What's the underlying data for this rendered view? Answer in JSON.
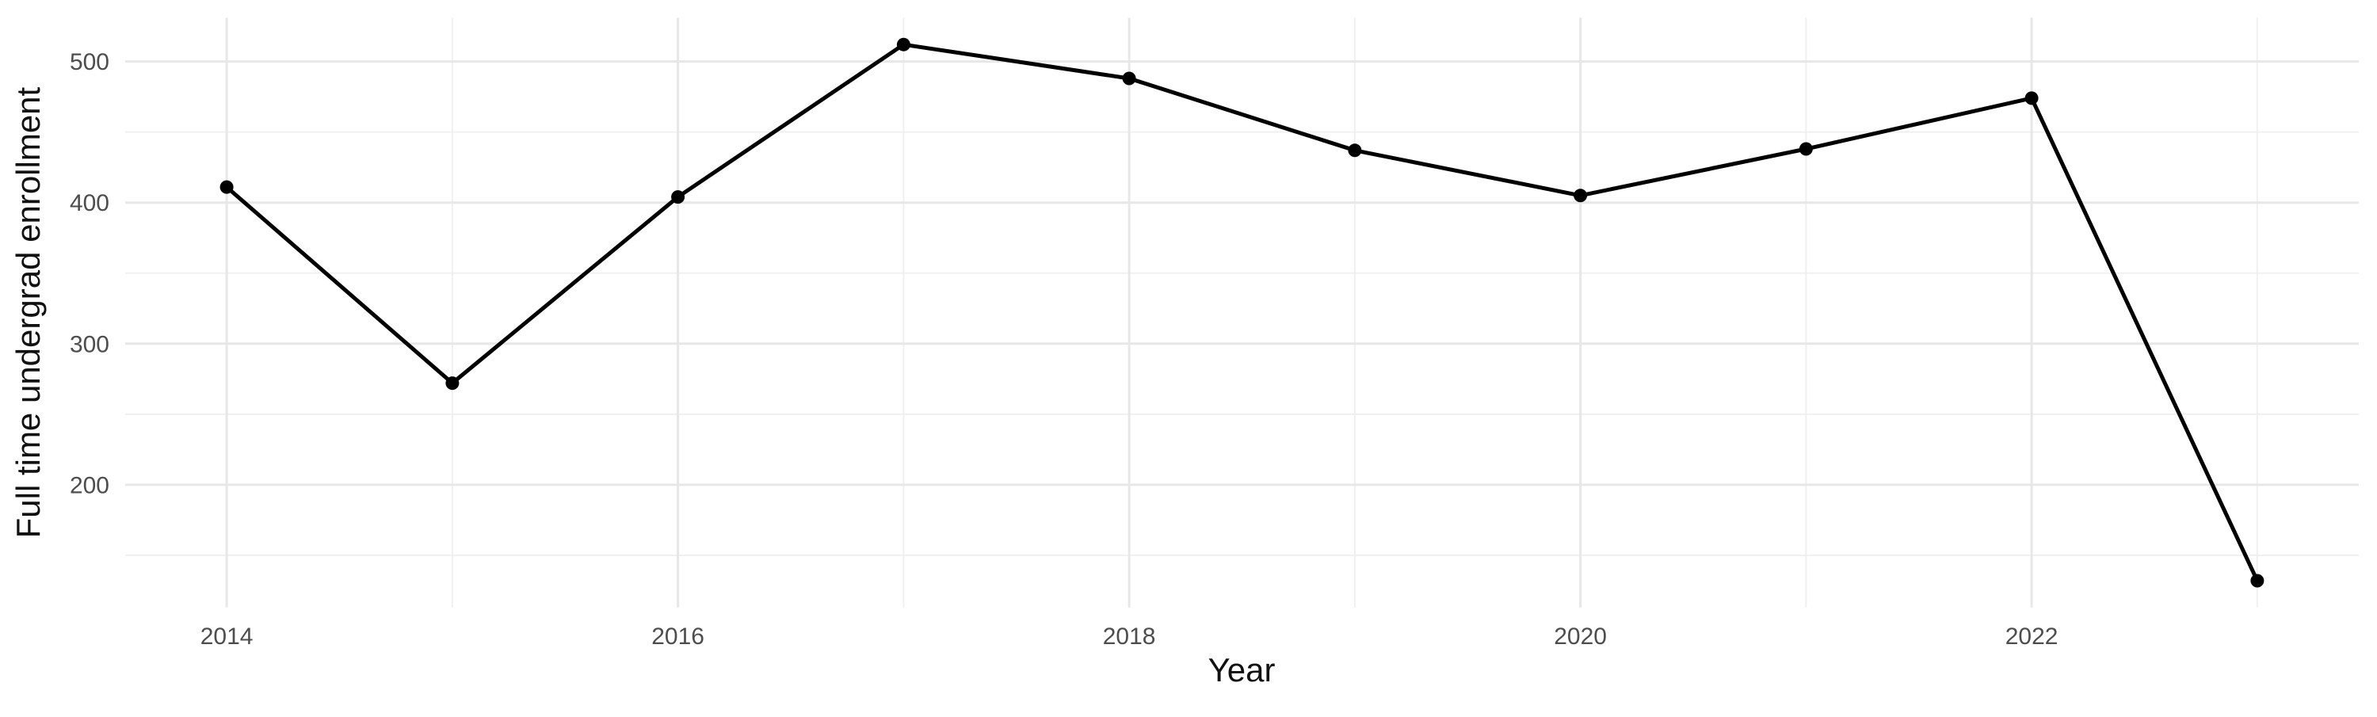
{
  "chart_data": {
    "type": "line",
    "title": "",
    "xlabel": "Year",
    "ylabel": "Full time undergrad enrollment",
    "x": [
      2014,
      2015,
      2016,
      2017,
      2018,
      2019,
      2020,
      2021,
      2022,
      2023
    ],
    "series": [
      {
        "name": "Full time undergrad enrollment",
        "values": [
          411,
          272,
          404,
          512,
          488,
          437,
          405,
          438,
          474,
          132
        ]
      }
    ],
    "xlim": [
      2013.55,
      2023.45
    ],
    "ylim": [
      113,
      531
    ],
    "x_major_ticks": [
      2014,
      2016,
      2018,
      2020,
      2022
    ],
    "x_minor_gridlines": [
      2015,
      2017,
      2019,
      2021,
      2023
    ],
    "y_major_ticks": [
      200,
      300,
      400,
      500
    ],
    "y_minor_gridlines": [
      150,
      250,
      350,
      450
    ],
    "x_tick_labels": [
      "2014",
      "2016",
      "2018",
      "2020",
      "2022"
    ],
    "y_tick_labels": [
      "200",
      "300",
      "400",
      "500"
    ],
    "grid": "major-and-minor, no axis lines, no tick marks",
    "legend": false,
    "marker": "filled-circle",
    "colors": {
      "background": "#ffffff",
      "line": "#000000",
      "point": "#000000",
      "grid_major": "#e7e7e7",
      "grid_minor": "#efefef",
      "tick_text": "#4d4d4d",
      "axis_title_text": "#111111"
    }
  }
}
